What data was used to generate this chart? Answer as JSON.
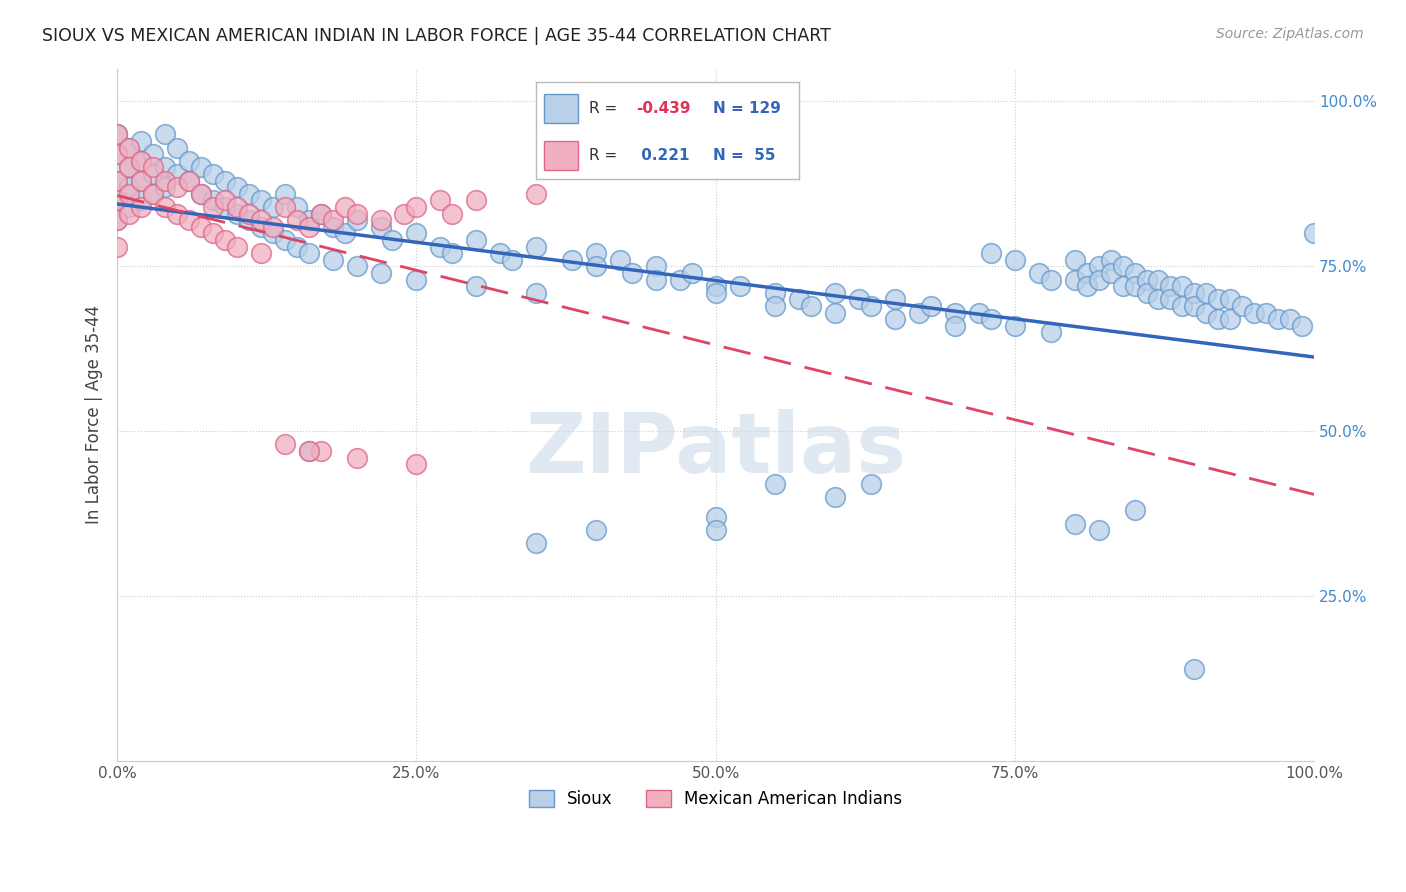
{
  "title": "SIOUX VS MEXICAN AMERICAN INDIAN IN LABOR FORCE | AGE 35-44 CORRELATION CHART",
  "source": "Source: ZipAtlas.com",
  "ylabel": "In Labor Force | Age 35-44",
  "watermark": "ZIPatlas",
  "sioux_color": "#b8d0e8",
  "mexican_color": "#f0b0c0",
  "sioux_edge_color": "#6699cc",
  "mexican_edge_color": "#dd6688",
  "sioux_line_color": "#3366bb",
  "mexican_line_color": "#dd4466",
  "background_color": "#ffffff",
  "grid_color": "#cccccc",
  "ytick_color": "#4488cc",
  "sioux_scatter": [
    [
      0.0,
      0.95
    ],
    [
      0.0,
      0.92
    ],
    [
      0.0,
      0.88
    ],
    [
      0.0,
      0.85
    ],
    [
      0.0,
      0.82
    ],
    [
      0.01,
      0.93
    ],
    [
      0.01,
      0.9
    ],
    [
      0.01,
      0.87
    ],
    [
      0.01,
      0.84
    ],
    [
      0.02,
      0.94
    ],
    [
      0.02,
      0.91
    ],
    [
      0.02,
      0.88
    ],
    [
      0.02,
      0.85
    ],
    [
      0.03,
      0.92
    ],
    [
      0.03,
      0.89
    ],
    [
      0.03,
      0.86
    ],
    [
      0.04,
      0.95
    ],
    [
      0.04,
      0.9
    ],
    [
      0.04,
      0.87
    ],
    [
      0.05,
      0.93
    ],
    [
      0.05,
      0.89
    ],
    [
      0.06,
      0.91
    ],
    [
      0.06,
      0.88
    ],
    [
      0.07,
      0.9
    ],
    [
      0.07,
      0.86
    ],
    [
      0.08,
      0.89
    ],
    [
      0.08,
      0.85
    ],
    [
      0.09,
      0.88
    ],
    [
      0.09,
      0.84
    ],
    [
      0.1,
      0.87
    ],
    [
      0.1,
      0.83
    ],
    [
      0.11,
      0.86
    ],
    [
      0.11,
      0.82
    ],
    [
      0.12,
      0.85
    ],
    [
      0.12,
      0.81
    ],
    [
      0.13,
      0.84
    ],
    [
      0.13,
      0.8
    ],
    [
      0.14,
      0.86
    ],
    [
      0.14,
      0.79
    ],
    [
      0.15,
      0.84
    ],
    [
      0.15,
      0.78
    ],
    [
      0.16,
      0.82
    ],
    [
      0.16,
      0.77
    ],
    [
      0.17,
      0.83
    ],
    [
      0.18,
      0.81
    ],
    [
      0.18,
      0.76
    ],
    [
      0.19,
      0.8
    ],
    [
      0.2,
      0.82
    ],
    [
      0.2,
      0.75
    ],
    [
      0.22,
      0.81
    ],
    [
      0.22,
      0.74
    ],
    [
      0.23,
      0.79
    ],
    [
      0.25,
      0.8
    ],
    [
      0.25,
      0.73
    ],
    [
      0.27,
      0.78
    ],
    [
      0.28,
      0.77
    ],
    [
      0.3,
      0.79
    ],
    [
      0.3,
      0.72
    ],
    [
      0.32,
      0.77
    ],
    [
      0.33,
      0.76
    ],
    [
      0.35,
      0.78
    ],
    [
      0.35,
      0.71
    ],
    [
      0.38,
      0.76
    ],
    [
      0.4,
      0.77
    ],
    [
      0.4,
      0.75
    ],
    [
      0.42,
      0.76
    ],
    [
      0.43,
      0.74
    ],
    [
      0.45,
      0.75
    ],
    [
      0.45,
      0.73
    ],
    [
      0.47,
      0.73
    ],
    [
      0.48,
      0.74
    ],
    [
      0.5,
      0.72
    ],
    [
      0.5,
      0.71
    ],
    [
      0.52,
      0.72
    ],
    [
      0.55,
      0.71
    ],
    [
      0.55,
      0.69
    ],
    [
      0.57,
      0.7
    ],
    [
      0.58,
      0.69
    ],
    [
      0.6,
      0.71
    ],
    [
      0.6,
      0.68
    ],
    [
      0.62,
      0.7
    ],
    [
      0.63,
      0.69
    ],
    [
      0.65,
      0.7
    ],
    [
      0.65,
      0.67
    ],
    [
      0.67,
      0.68
    ],
    [
      0.68,
      0.69
    ],
    [
      0.7,
      0.68
    ],
    [
      0.7,
      0.66
    ],
    [
      0.72,
      0.68
    ],
    [
      0.73,
      0.77
    ],
    [
      0.73,
      0.67
    ],
    [
      0.75,
      0.76
    ],
    [
      0.75,
      0.66
    ],
    [
      0.77,
      0.74
    ],
    [
      0.78,
      0.73
    ],
    [
      0.78,
      0.65
    ],
    [
      0.8,
      0.76
    ],
    [
      0.8,
      0.73
    ],
    [
      0.81,
      0.74
    ],
    [
      0.81,
      0.72
    ],
    [
      0.82,
      0.75
    ],
    [
      0.82,
      0.73
    ],
    [
      0.83,
      0.76
    ],
    [
      0.83,
      0.74
    ],
    [
      0.84,
      0.75
    ],
    [
      0.84,
      0.72
    ],
    [
      0.85,
      0.74
    ],
    [
      0.85,
      0.72
    ],
    [
      0.86,
      0.73
    ],
    [
      0.86,
      0.71
    ],
    [
      0.87,
      0.73
    ],
    [
      0.87,
      0.7
    ],
    [
      0.88,
      0.72
    ],
    [
      0.88,
      0.7
    ],
    [
      0.89,
      0.72
    ],
    [
      0.89,
      0.69
    ],
    [
      0.9,
      0.71
    ],
    [
      0.9,
      0.69
    ],
    [
      0.91,
      0.71
    ],
    [
      0.91,
      0.68
    ],
    [
      0.92,
      0.7
    ],
    [
      0.92,
      0.67
    ],
    [
      0.93,
      0.7
    ],
    [
      0.93,
      0.67
    ],
    [
      0.94,
      0.69
    ],
    [
      0.95,
      0.68
    ],
    [
      0.96,
      0.68
    ],
    [
      0.97,
      0.67
    ],
    [
      0.98,
      0.67
    ],
    [
      0.99,
      0.66
    ],
    [
      1.0,
      0.8
    ],
    [
      0.5,
      0.37
    ],
    [
      0.5,
      0.35
    ],
    [
      0.55,
      0.42
    ],
    [
      0.6,
      0.4
    ],
    [
      0.35,
      0.33
    ],
    [
      0.4,
      0.35
    ],
    [
      0.16,
      0.47
    ],
    [
      0.63,
      0.42
    ],
    [
      0.8,
      0.36
    ],
    [
      0.82,
      0.35
    ],
    [
      0.85,
      0.38
    ],
    [
      0.9,
      0.14
    ]
  ],
  "mexican_scatter": [
    [
      0.0,
      0.95
    ],
    [
      0.0,
      0.92
    ],
    [
      0.0,
      0.88
    ],
    [
      0.0,
      0.85
    ],
    [
      0.0,
      0.82
    ],
    [
      0.0,
      0.78
    ],
    [
      0.01,
      0.93
    ],
    [
      0.01,
      0.9
    ],
    [
      0.01,
      0.86
    ],
    [
      0.01,
      0.83
    ],
    [
      0.02,
      0.91
    ],
    [
      0.02,
      0.88
    ],
    [
      0.02,
      0.84
    ],
    [
      0.03,
      0.9
    ],
    [
      0.03,
      0.86
    ],
    [
      0.04,
      0.88
    ],
    [
      0.04,
      0.84
    ],
    [
      0.05,
      0.87
    ],
    [
      0.05,
      0.83
    ],
    [
      0.06,
      0.88
    ],
    [
      0.06,
      0.82
    ],
    [
      0.07,
      0.86
    ],
    [
      0.07,
      0.81
    ],
    [
      0.08,
      0.84
    ],
    [
      0.08,
      0.8
    ],
    [
      0.09,
      0.85
    ],
    [
      0.09,
      0.79
    ],
    [
      0.1,
      0.84
    ],
    [
      0.1,
      0.78
    ],
    [
      0.11,
      0.83
    ],
    [
      0.12,
      0.82
    ],
    [
      0.12,
      0.77
    ],
    [
      0.13,
      0.81
    ],
    [
      0.14,
      0.84
    ],
    [
      0.15,
      0.82
    ],
    [
      0.16,
      0.81
    ],
    [
      0.17,
      0.83
    ],
    [
      0.18,
      0.82
    ],
    [
      0.19,
      0.84
    ],
    [
      0.2,
      0.83
    ],
    [
      0.22,
      0.82
    ],
    [
      0.24,
      0.83
    ],
    [
      0.25,
      0.84
    ],
    [
      0.27,
      0.85
    ],
    [
      0.28,
      0.83
    ],
    [
      0.3,
      0.85
    ],
    [
      0.35,
      0.86
    ],
    [
      0.17,
      0.47
    ],
    [
      0.2,
      0.46
    ],
    [
      0.25,
      0.45
    ],
    [
      0.14,
      0.48
    ],
    [
      0.16,
      0.47
    ]
  ],
  "xlim": [
    0.0,
    1.0
  ],
  "ylim": [
    0.0,
    1.05
  ],
  "xticks": [
    0.0,
    0.25,
    0.5,
    0.75,
    1.0
  ],
  "yticks": [
    0.25,
    0.5,
    0.75,
    1.0
  ],
  "xtick_labels": [
    "0.0%",
    "25.0%",
    "50.0%",
    "75.0%",
    "100.0%"
  ],
  "ytick_labels": [
    "25.0%",
    "50.0%",
    "75.0%",
    "100.0%"
  ]
}
